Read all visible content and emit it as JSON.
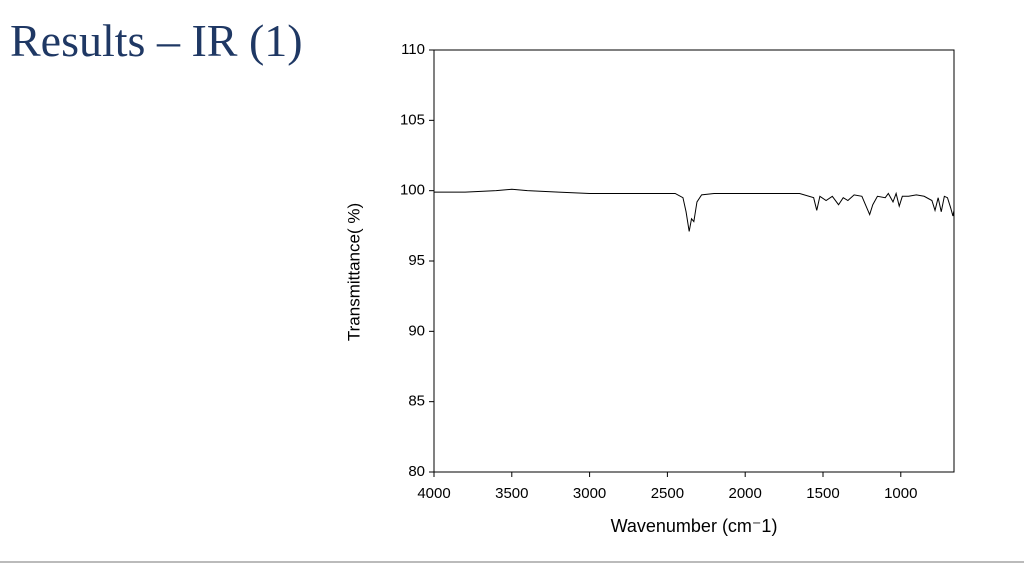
{
  "chart_data": {
    "type": "line",
    "title": "Results – IR (1)",
    "x_label": "Wavenumber (cm⁻1)",
    "y_label": "Transmittance( %)",
    "x": [
      4000,
      3800,
      3600,
      3500,
      3400,
      3200,
      3000,
      2800,
      2600,
      2450,
      2400,
      2380,
      2360,
      2345,
      2330,
      2310,
      2280,
      2200,
      2000,
      1800,
      1650,
      1560,
      1540,
      1520,
      1480,
      1440,
      1400,
      1370,
      1340,
      1300,
      1250,
      1200,
      1180,
      1150,
      1100,
      1080,
      1050,
      1030,
      1010,
      990,
      950,
      900,
      850,
      800,
      780,
      760,
      740,
      720,
      700,
      680,
      665,
      658
    ],
    "series": [
      {
        "color": "#000000",
        "values": [
          99.9,
          99.9,
          100.0,
          100.1,
          100.0,
          99.9,
          99.8,
          99.8,
          99.8,
          99.8,
          99.5,
          98.5,
          97.1,
          98.0,
          97.8,
          99.2,
          99.7,
          99.8,
          99.8,
          99.8,
          99.8,
          99.5,
          98.6,
          99.6,
          99.3,
          99.6,
          99.0,
          99.5,
          99.3,
          99.7,
          99.6,
          98.3,
          99.0,
          99.6,
          99.5,
          99.8,
          99.2,
          99.8,
          98.9,
          99.6,
          99.6,
          99.7,
          99.6,
          99.3,
          98.6,
          99.5,
          98.5,
          99.6,
          99.5,
          98.8,
          98.2,
          98.6
        ]
      }
    ],
    "xlim": [
      4000,
      658
    ],
    "xticks": [
      4000,
      3500,
      3000,
      2500,
      2000,
      1500,
      1000
    ],
    "ylim": [
      80,
      110
    ],
    "yticks": [
      80,
      85,
      90,
      95,
      100,
      105,
      110
    ]
  }
}
